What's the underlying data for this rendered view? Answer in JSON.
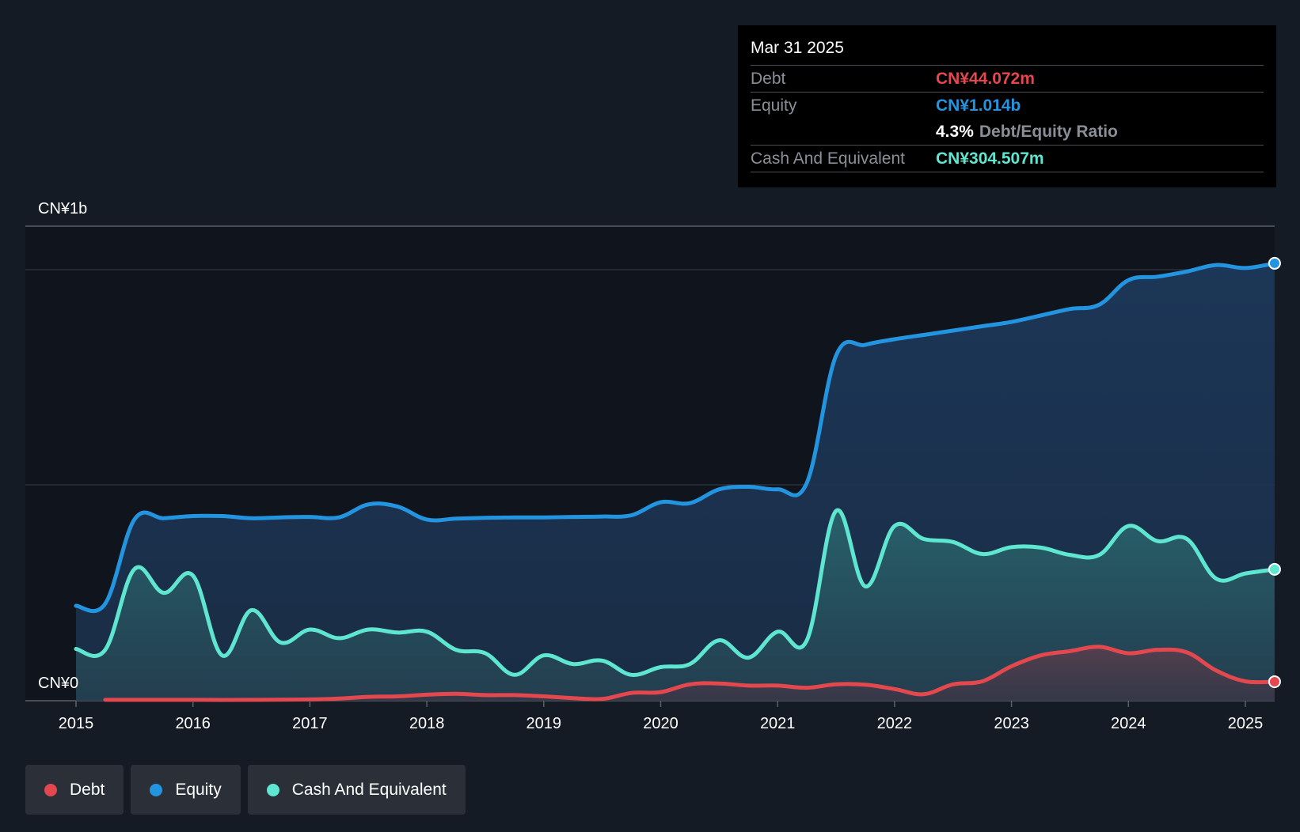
{
  "chart_data": {
    "type": "area",
    "y_unit_labels": {
      "top": "CN¥1b",
      "bottom": "CN¥0"
    },
    "ylim": [
      0,
      1100
    ],
    "x_ticks": [
      "2015",
      "2016",
      "2017",
      "2018",
      "2019",
      "2020",
      "2021",
      "2022",
      "2023",
      "2024",
      "2025"
    ],
    "x_range": [
      2014.58,
      2025.25
    ],
    "series": [
      {
        "name": "Equity",
        "color": "#2394df",
        "points": [
          [
            2015.0,
            220
          ],
          [
            2015.25,
            225
          ],
          [
            2015.5,
            420
          ],
          [
            2015.75,
            423
          ],
          [
            2016.0,
            428
          ],
          [
            2016.25,
            428
          ],
          [
            2016.5,
            423
          ],
          [
            2016.75,
            425
          ],
          [
            2017.0,
            426
          ],
          [
            2017.25,
            425
          ],
          [
            2017.5,
            455
          ],
          [
            2017.75,
            450
          ],
          [
            2018.0,
            420
          ],
          [
            2018.25,
            422
          ],
          [
            2018.5,
            424
          ],
          [
            2018.75,
            425
          ],
          [
            2019.0,
            425
          ],
          [
            2019.25,
            426
          ],
          [
            2019.5,
            427
          ],
          [
            2019.75,
            430
          ],
          [
            2020.0,
            460
          ],
          [
            2020.25,
            458
          ],
          [
            2020.5,
            490
          ],
          [
            2020.75,
            496
          ],
          [
            2021.0,
            490
          ],
          [
            2021.25,
            505
          ],
          [
            2021.5,
            800
          ],
          [
            2021.75,
            825
          ],
          [
            2022.0,
            838
          ],
          [
            2022.25,
            848
          ],
          [
            2022.5,
            858
          ],
          [
            2022.75,
            868
          ],
          [
            2023.0,
            878
          ],
          [
            2023.25,
            893
          ],
          [
            2023.5,
            908
          ],
          [
            2023.75,
            918
          ],
          [
            2024.0,
            975
          ],
          [
            2024.25,
            983
          ],
          [
            2024.5,
            995
          ],
          [
            2024.75,
            1010
          ],
          [
            2025.0,
            1003
          ],
          [
            2025.25,
            1014
          ]
        ]
      },
      {
        "name": "Cash And Equivalent",
        "color": "#5ee6d0",
        "points": [
          [
            2015.0,
            120
          ],
          [
            2015.25,
            118
          ],
          [
            2015.5,
            305
          ],
          [
            2015.75,
            250
          ],
          [
            2016.0,
            290
          ],
          [
            2016.25,
            105
          ],
          [
            2016.5,
            210
          ],
          [
            2016.75,
            135
          ],
          [
            2017.0,
            165
          ],
          [
            2017.25,
            145
          ],
          [
            2017.5,
            165
          ],
          [
            2017.75,
            158
          ],
          [
            2018.0,
            160
          ],
          [
            2018.25,
            118
          ],
          [
            2018.5,
            110
          ],
          [
            2018.75,
            60
          ],
          [
            2019.0,
            105
          ],
          [
            2019.25,
            85
          ],
          [
            2019.5,
            93
          ],
          [
            2019.75,
            60
          ],
          [
            2020.0,
            78
          ],
          [
            2020.25,
            85
          ],
          [
            2020.5,
            140
          ],
          [
            2020.75,
            100
          ],
          [
            2021.0,
            160
          ],
          [
            2021.25,
            140
          ],
          [
            2021.5,
            440
          ],
          [
            2021.75,
            265
          ],
          [
            2022.0,
            405
          ],
          [
            2022.25,
            375
          ],
          [
            2022.5,
            368
          ],
          [
            2022.75,
            340
          ],
          [
            2023.0,
            356
          ],
          [
            2023.25,
            355
          ],
          [
            2023.5,
            338
          ],
          [
            2023.75,
            338
          ],
          [
            2024.0,
            405
          ],
          [
            2024.25,
            370
          ],
          [
            2024.5,
            375
          ],
          [
            2024.75,
            283
          ],
          [
            2025.0,
            295
          ],
          [
            2025.25,
            304.507
          ]
        ]
      },
      {
        "name": "Debt",
        "color": "#e3484e",
        "points": [
          [
            2015.25,
            2
          ],
          [
            2015.5,
            2
          ],
          [
            2016.0,
            2
          ],
          [
            2016.5,
            2
          ],
          [
            2017.0,
            3
          ],
          [
            2017.25,
            5
          ],
          [
            2017.5,
            9
          ],
          [
            2017.75,
            10
          ],
          [
            2018.0,
            14
          ],
          [
            2018.25,
            16
          ],
          [
            2018.5,
            13
          ],
          [
            2018.75,
            13
          ],
          [
            2019.0,
            10
          ],
          [
            2019.25,
            6
          ],
          [
            2019.5,
            4
          ],
          [
            2019.75,
            18
          ],
          [
            2020.0,
            20
          ],
          [
            2020.25,
            38
          ],
          [
            2020.5,
            40
          ],
          [
            2020.75,
            35
          ],
          [
            2021.0,
            35
          ],
          [
            2021.25,
            30
          ],
          [
            2021.5,
            38
          ],
          [
            2021.75,
            37
          ],
          [
            2022.0,
            27
          ],
          [
            2022.25,
            15
          ],
          [
            2022.5,
            38
          ],
          [
            2022.75,
            45
          ],
          [
            2023.0,
            80
          ],
          [
            2023.25,
            105
          ],
          [
            2023.5,
            115
          ],
          [
            2023.75,
            125
          ],
          [
            2024.0,
            110
          ],
          [
            2024.25,
            118
          ],
          [
            2024.5,
            112
          ],
          [
            2024.75,
            70
          ],
          [
            2025.0,
            45
          ],
          [
            2025.25,
            44.072
          ]
        ]
      }
    ]
  },
  "tooltip": {
    "date": "Mar 31 2025",
    "debt_label": "Debt",
    "debt_value": "CN¥44.072m",
    "equity_label": "Equity",
    "equity_value": "CN¥1.014b",
    "ratio_value": "4.3%",
    "ratio_label": "Debt/Equity Ratio",
    "cash_label": "Cash And Equivalent",
    "cash_value": "CN¥304.507m"
  },
  "legend": {
    "debt": "Debt",
    "equity": "Equity",
    "cash": "Cash And Equivalent"
  },
  "colors": {
    "debt": "#e3484e",
    "equity": "#2394df",
    "cash": "#5ee6d0",
    "background": "#151b24"
  }
}
